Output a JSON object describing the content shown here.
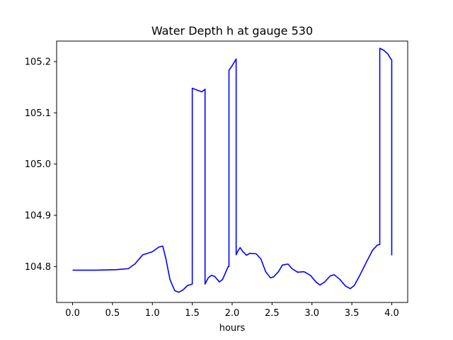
{
  "chart_data": {
    "type": "line",
    "title": "Water Depth h at gauge 530",
    "xlabel": "hours",
    "ylabel": "",
    "xlim": [
      -0.2,
      4.2
    ],
    "ylim": [
      104.73,
      105.24
    ],
    "xticks": [
      0.0,
      0.5,
      1.0,
      1.5,
      2.0,
      2.5,
      3.0,
      3.5,
      4.0
    ],
    "xtick_labels": [
      "0.0",
      "0.5",
      "1.0",
      "1.5",
      "2.0",
      "2.5",
      "3.0",
      "3.5",
      "4.0"
    ],
    "yticks": [
      104.8,
      104.9,
      105.0,
      105.1,
      105.2
    ],
    "ytick_labels": [
      "104.8",
      "104.9",
      "105.0",
      "105.1",
      "105.2"
    ],
    "grid": false,
    "series": [
      {
        "color": "#0000ff",
        "points": [
          [
            0.0,
            104.793
          ],
          [
            0.3,
            104.793
          ],
          [
            0.55,
            104.794
          ],
          [
            0.7,
            104.796
          ],
          [
            0.78,
            104.805
          ],
          [
            0.88,
            104.823
          ],
          [
            1.0,
            104.829
          ],
          [
            1.08,
            104.838
          ],
          [
            1.13,
            104.84
          ],
          [
            1.17,
            104.815
          ],
          [
            1.22,
            104.775
          ],
          [
            1.28,
            104.753
          ],
          [
            1.33,
            104.75
          ],
          [
            1.38,
            104.754
          ],
          [
            1.44,
            104.763
          ],
          [
            1.5,
            104.766
          ],
          [
            1.5,
            105.148
          ],
          [
            1.55,
            105.145
          ],
          [
            1.62,
            105.141
          ],
          [
            1.66,
            105.146
          ],
          [
            1.66,
            104.766
          ],
          [
            1.7,
            104.778
          ],
          [
            1.74,
            104.783
          ],
          [
            1.78,
            104.781
          ],
          [
            1.84,
            104.77
          ],
          [
            1.88,
            104.775
          ],
          [
            1.95,
            104.8
          ],
          [
            1.96,
            104.8
          ],
          [
            1.96,
            105.183
          ],
          [
            2.0,
            105.192
          ],
          [
            2.05,
            105.205
          ],
          [
            2.05,
            104.823
          ],
          [
            2.07,
            104.83
          ],
          [
            2.1,
            104.837
          ],
          [
            2.13,
            104.83
          ],
          [
            2.18,
            104.822
          ],
          [
            2.22,
            104.826
          ],
          [
            2.3,
            104.825
          ],
          [
            2.36,
            104.815
          ],
          [
            2.42,
            104.79
          ],
          [
            2.48,
            104.778
          ],
          [
            2.52,
            104.78
          ],
          [
            2.58,
            104.79
          ],
          [
            2.63,
            104.803
          ],
          [
            2.7,
            104.805
          ],
          [
            2.75,
            104.796
          ],
          [
            2.82,
            104.789
          ],
          [
            2.9,
            104.79
          ],
          [
            2.98,
            104.783
          ],
          [
            3.05,
            104.77
          ],
          [
            3.1,
            104.764
          ],
          [
            3.16,
            104.77
          ],
          [
            3.23,
            104.782
          ],
          [
            3.28,
            104.784
          ],
          [
            3.35,
            104.775
          ],
          [
            3.42,
            104.762
          ],
          [
            3.48,
            104.757
          ],
          [
            3.53,
            104.763
          ],
          [
            3.6,
            104.783
          ],
          [
            3.68,
            104.808
          ],
          [
            3.76,
            104.832
          ],
          [
            3.82,
            104.842
          ],
          [
            3.85,
            104.843
          ],
          [
            3.85,
            105.226
          ],
          [
            3.9,
            105.222
          ],
          [
            3.95,
            105.215
          ],
          [
            3.99,
            105.205
          ],
          [
            4.0,
            105.203
          ],
          [
            4.0,
            104.822
          ]
        ]
      }
    ]
  }
}
